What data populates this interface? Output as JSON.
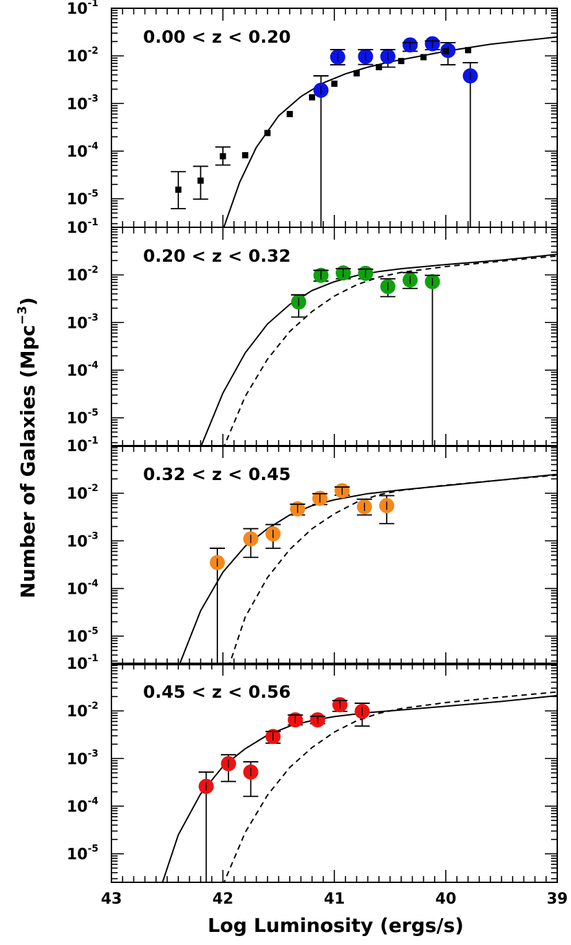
{
  "figure": {
    "ylabel": "Number of Galaxies (Mpc",
    "ylabel_exp": "−3",
    "ylabel_close": ")",
    "xlabel": "Log Luminosity (ergs/s)"
  },
  "chart_data": [
    {
      "type": "scatter",
      "title": "0.00 < z < 0.20",
      "xlim": [
        43,
        39
      ],
      "ylim": [
        -5.6,
        -1
      ],
      "y_log": true,
      "x_ticks": [
        "43",
        "42",
        "41",
        "40",
        "39"
      ],
      "y_tick_labels": [
        {
          "base": "10",
          "exp": "-1",
          "log": -1
        },
        {
          "base": "10",
          "exp": "-2",
          "log": -2
        },
        {
          "base": "10",
          "exp": "-3",
          "log": -3
        },
        {
          "base": "10",
          "exp": "-4",
          "log": -4
        },
        {
          "base": "10",
          "exp": "-5",
          "log": -5
        }
      ],
      "series": [
        {
          "marker": "circle",
          "color": "#0a14e6",
          "points": [
            {
              "x": 41.12,
              "y": 0.0019,
              "lo": 1e-08,
              "hi": 0.0038
            },
            {
              "x": 40.97,
              "y": 0.0095,
              "lo": 0.0065,
              "hi": 0.0135
            },
            {
              "x": 40.72,
              "y": 0.0097,
              "lo": 0.0066,
              "hi": 0.0135
            },
            {
              "x": 40.52,
              "y": 0.0097,
              "lo": 0.0058,
              "hi": 0.0135
            },
            {
              "x": 40.32,
              "y": 0.017,
              "lo": 0.0125,
              "hi": 0.019
            },
            {
              "x": 40.12,
              "y": 0.018,
              "lo": 0.0135,
              "hi": 0.0205
            },
            {
              "x": 39.98,
              "y": 0.013,
              "lo": 0.0065,
              "hi": 0.019
            },
            {
              "x": 39.78,
              "y": 0.0038,
              "lo": 1e-08,
              "hi": 0.0072
            }
          ]
        },
        {
          "marker": "square",
          "color": "#000000",
          "points": [
            {
              "x": 42.4,
              "y": 1.55e-05,
              "lo": 6.2e-06,
              "hi": 3.7e-05
            },
            {
              "x": 42.2,
              "y": 2.4e-05,
              "lo": 9.8e-06,
              "hi": 4.8e-05
            },
            {
              "x": 42.0,
              "y": 7.8e-05,
              "lo": 5.1e-05,
              "hi": 0.000122
            },
            {
              "x": 41.8,
              "y": 8.2e-05
            },
            {
              "x": 41.6,
              "y": 0.00024
            },
            {
              "x": 41.4,
              "y": 0.0006
            },
            {
              "x": 41.2,
              "y": 0.00135
            },
            {
              "x": 41.0,
              "y": 0.0026
            },
            {
              "x": 40.8,
              "y": 0.0043
            },
            {
              "x": 40.6,
              "y": 0.0058
            },
            {
              "x": 40.4,
              "y": 0.0078
            },
            {
              "x": 40.2,
              "y": 0.0094
            },
            {
              "x": 40.0,
              "y": 0.0125
            },
            {
              "x": 39.8,
              "y": 0.0132
            }
          ]
        }
      ],
      "curves": [
        {
          "style": "solid",
          "points": [
            [
              42.0,
              2.2e-06
            ],
            [
              41.85,
              2.2e-05
            ],
            [
              41.7,
              0.00012
            ],
            [
              41.5,
              0.00055
            ],
            [
              41.3,
              0.0014
            ],
            [
              41.1,
              0.0027
            ],
            [
              40.9,
              0.0042
            ],
            [
              40.7,
              0.0058
            ],
            [
              40.5,
              0.0075
            ],
            [
              40.3,
              0.0092
            ],
            [
              40.0,
              0.0125
            ],
            [
              39.6,
              0.0175
            ],
            [
              39.3,
              0.021
            ],
            [
              39.0,
              0.025
            ]
          ]
        }
      ]
    },
    {
      "type": "scatter",
      "title": "0.20 < z < 0.32",
      "xlim": [
        43,
        39
      ],
      "ylim": [
        -5.6,
        -1
      ],
      "y_log": true,
      "x_ticks": [],
      "y_tick_labels": [
        {
          "base": "10",
          "exp": "-1",
          "log": -1
        },
        {
          "base": "10",
          "exp": "-2",
          "log": -2
        },
        {
          "base": "10",
          "exp": "-3",
          "log": -3
        },
        {
          "base": "10",
          "exp": "-4",
          "log": -4
        },
        {
          "base": "10",
          "exp": "-5",
          "log": -5
        }
      ],
      "series": [
        {
          "marker": "circle",
          "color": "#10a010",
          "points": [
            {
              "x": 41.32,
              "y": 0.0027,
              "lo": 0.0013,
              "hi": 0.0038
            },
            {
              "x": 41.12,
              "y": 0.0098,
              "lo": 0.0074,
              "hi": 0.0125
            },
            {
              "x": 40.92,
              "y": 0.011,
              "lo": 0.0083,
              "hi": 0.0135
            },
            {
              "x": 40.72,
              "y": 0.0108,
              "lo": 0.0083,
              "hi": 0.0132
            },
            {
              "x": 40.52,
              "y": 0.0057,
              "lo": 0.0035,
              "hi": 0.0083
            },
            {
              "x": 40.32,
              "y": 0.0078,
              "lo": 0.0052,
              "hi": 0.0112
            },
            {
              "x": 40.12,
              "y": 0.0072,
              "lo": 1e-08,
              "hi": 0.0098
            }
          ]
        }
      ],
      "curves": [
        {
          "style": "solid",
          "points": [
            [
              42.2,
              2.4e-06
            ],
            [
              42.0,
              3.3e-05
            ],
            [
              41.8,
              0.00023
            ],
            [
              41.6,
              0.00093
            ],
            [
              41.4,
              0.0024
            ],
            [
              41.2,
              0.0047
            ],
            [
              41.0,
              0.0072
            ],
            [
              40.8,
              0.0097
            ],
            [
              40.6,
              0.0118
            ],
            [
              40.4,
              0.0135
            ],
            [
              40.0,
              0.0165
            ],
            [
              39.5,
              0.0205
            ],
            [
              39.0,
              0.027
            ]
          ]
        },
        {
          "style": "dashed",
          "points": [
            [
              42.0,
              2.2e-06
            ],
            [
              41.8,
              2.8e-05
            ],
            [
              41.6,
              0.00017
            ],
            [
              41.4,
              0.00065
            ],
            [
              41.2,
              0.0017
            ],
            [
              41.0,
              0.0036
            ],
            [
              40.8,
              0.0062
            ],
            [
              40.6,
              0.009
            ],
            [
              40.4,
              0.0113
            ],
            [
              40.0,
              0.015
            ],
            [
              39.5,
              0.0195
            ],
            [
              39.0,
              0.025
            ]
          ]
        }
      ]
    },
    {
      "type": "scatter",
      "title": "0.32 < z < 0.45",
      "xlim": [
        43,
        39
      ],
      "ylim": [
        -5.6,
        -1
      ],
      "y_log": true,
      "x_ticks": [],
      "y_tick_labels": [
        {
          "base": "10",
          "exp": "-1",
          "log": -1
        },
        {
          "base": "10",
          "exp": "-2",
          "log": -2
        },
        {
          "base": "10",
          "exp": "-3",
          "log": -3
        },
        {
          "base": "10",
          "exp": "-4",
          "log": -4
        },
        {
          "base": "10",
          "exp": "-5",
          "log": -5
        }
      ],
      "series": [
        {
          "marker": "circle",
          "color": "#f5881c",
          "points": [
            {
              "x": 42.05,
              "y": 0.00035,
              "lo": 1e-08,
              "hi": 0.0007
            },
            {
              "x": 41.75,
              "y": 0.0011,
              "lo": 0.00045,
              "hi": 0.0018
            },
            {
              "x": 41.55,
              "y": 0.0014,
              "lo": 0.0007,
              "hi": 0.0022
            },
            {
              "x": 41.33,
              "y": 0.0047,
              "lo": 0.0035,
              "hi": 0.0059
            },
            {
              "x": 41.13,
              "y": 0.0078,
              "lo": 0.0058,
              "hi": 0.0098
            },
            {
              "x": 40.93,
              "y": 0.0113,
              "lo": 0.0091,
              "hi": 0.0135
            },
            {
              "x": 40.73,
              "y": 0.0052,
              "lo": 0.0035,
              "hi": 0.0075
            },
            {
              "x": 40.53,
              "y": 0.0055,
              "lo": 0.0023,
              "hi": 0.0089
            }
          ]
        }
      ],
      "curves": [
        {
          "style": "solid",
          "points": [
            [
              42.4,
              2.2e-06
            ],
            [
              42.2,
              3.4e-05
            ],
            [
              42.0,
              0.00022
            ],
            [
              41.8,
              0.00077
            ],
            [
              41.6,
              0.0018
            ],
            [
              41.4,
              0.0035
            ],
            [
              41.2,
              0.0055
            ],
            [
              41.0,
              0.0073
            ],
            [
              40.7,
              0.0098
            ],
            [
              40.4,
              0.0118
            ],
            [
              40.0,
              0.0145
            ],
            [
              39.5,
              0.019
            ],
            [
              39.0,
              0.025
            ]
          ]
        },
        {
          "style": "dashed",
          "points": [
            [
              41.95,
              2.2e-06
            ],
            [
              41.8,
              2.5e-05
            ],
            [
              41.6,
              0.00017
            ],
            [
              41.4,
              0.00066
            ],
            [
              41.2,
              0.0018
            ],
            [
              41.0,
              0.0037
            ],
            [
              40.8,
              0.0065
            ],
            [
              40.6,
              0.0093
            ],
            [
              40.4,
              0.0115
            ],
            [
              40.0,
              0.0148
            ],
            [
              39.5,
              0.019
            ],
            [
              39.0,
              0.024
            ]
          ]
        }
      ]
    },
    {
      "type": "scatter",
      "title": "0.45 < z < 0.56",
      "xlim": [
        43,
        39
      ],
      "ylim": [
        -5.6,
        -1
      ],
      "y_log": true,
      "x_ticks": [
        "43",
        "42",
        "41",
        "40",
        "39"
      ],
      "y_tick_labels": [
        {
          "base": "10",
          "exp": "-1",
          "log": -1
        },
        {
          "base": "10",
          "exp": "-2",
          "log": -2
        },
        {
          "base": "10",
          "exp": "-3",
          "log": -3
        },
        {
          "base": "10",
          "exp": "-4",
          "log": -4
        },
        {
          "base": "10",
          "exp": "-5",
          "log": -5
        }
      ],
      "series": [
        {
          "marker": "circle",
          "color": "#ee1111",
          "points": [
            {
              "x": 42.15,
              "y": 0.00026,
              "lo": 1e-08,
              "hi": 0.00052
            },
            {
              "x": 41.95,
              "y": 0.00078,
              "lo": 0.00033,
              "hi": 0.0012
            },
            {
              "x": 41.75,
              "y": 0.00052,
              "lo": 0.00016,
              "hi": 0.00085
            },
            {
              "x": 41.55,
              "y": 0.0029,
              "lo": 0.0021,
              "hi": 0.0037
            },
            {
              "x": 41.35,
              "y": 0.0065,
              "lo": 0.0051,
              "hi": 0.0082
            },
            {
              "x": 41.15,
              "y": 0.0065,
              "lo": 0.0054,
              "hi": 0.0077
            },
            {
              "x": 40.95,
              "y": 0.0135,
              "lo": 0.0098,
              "hi": 0.0165
            },
            {
              "x": 40.75,
              "y": 0.0098,
              "lo": 0.0048,
              "hi": 0.0145
            }
          ]
        }
      ],
      "curves": [
        {
          "style": "solid",
          "points": [
            [
              42.55,
              2.2e-06
            ],
            [
              42.4,
              2.5e-05
            ],
            [
              42.2,
              0.00018
            ],
            [
              42.0,
              0.00068
            ],
            [
              41.8,
              0.0016
            ],
            [
              41.6,
              0.0031
            ],
            [
              41.4,
              0.0048
            ],
            [
              41.2,
              0.0063
            ],
            [
              41.0,
              0.0076
            ],
            [
              40.7,
              0.0092
            ],
            [
              40.4,
              0.0105
            ],
            [
              40.0,
              0.0125
            ],
            [
              39.5,
              0.0158
            ],
            [
              39.0,
              0.021
            ]
          ]
        },
        {
          "style": "dashed",
          "points": [
            [
              42.0,
              2.2e-06
            ],
            [
              41.8,
              2.8e-05
            ],
            [
              41.6,
              0.00017
            ],
            [
              41.4,
              0.00065
            ],
            [
              41.2,
              0.0017
            ],
            [
              41.0,
              0.0036
            ],
            [
              40.8,
              0.0062
            ],
            [
              40.6,
              0.0089
            ],
            [
              40.4,
              0.0112
            ],
            [
              40.0,
              0.015
            ],
            [
              39.5,
              0.0195
            ],
            [
              39.0,
              0.025
            ]
          ]
        }
      ]
    }
  ]
}
